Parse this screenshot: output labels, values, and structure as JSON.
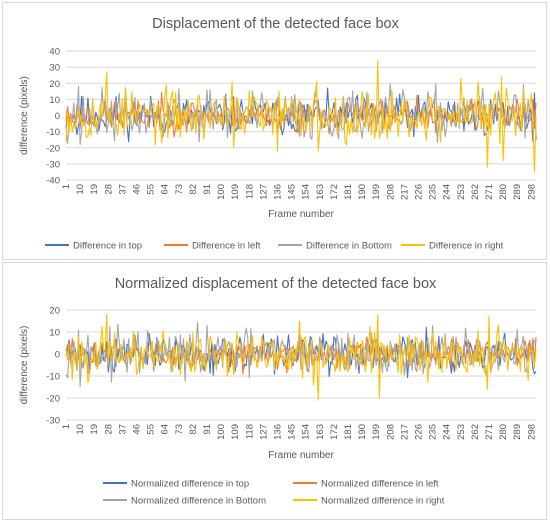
{
  "chart_data": [
    {
      "type": "line",
      "title": "Displacement of the detected face box",
      "xlabel": "Frame number",
      "ylabel": "difference (pixels)",
      "ylim": [
        -40,
        40
      ],
      "yticks": [
        40,
        30,
        20,
        10,
        0,
        -10,
        -20,
        -30,
        -40
      ],
      "xrange": [
        1,
        301
      ],
      "xticks": [
        1,
        10,
        19,
        28,
        37,
        46,
        55,
        64,
        73,
        82,
        91,
        100,
        109,
        118,
        127,
        136,
        145,
        154,
        163,
        172,
        181,
        190,
        199,
        208,
        217,
        226,
        235,
        244,
        253,
        262,
        271,
        280,
        289,
        298
      ],
      "grid": true,
      "legend_position": "bottom",
      "series": [
        {
          "name": "Difference in top",
          "color": "#4472c4",
          "amplitude": 7,
          "seed": 11,
          "spikes": [
            [
              8,
              -12
            ],
            [
              150,
              9
            ],
            [
              299,
              -16
            ],
            [
              300,
              14
            ]
          ]
        },
        {
          "name": "Difference in left",
          "color": "#ed7d31",
          "amplitude": 6,
          "seed": 23,
          "spikes": [
            [
              60,
              9
            ],
            [
              300,
              -8
            ]
          ]
        },
        {
          "name": "Difference in Bottom",
          "color": "#a5a5a5",
          "amplitude": 9,
          "seed": 37,
          "spikes": [
            [
              9,
              18
            ],
            [
              10,
              -18
            ],
            [
              91,
              16
            ],
            [
              160,
              15
            ],
            [
              255,
              11
            ],
            [
              293,
              19
            ]
          ]
        },
        {
          "name": "Difference in right",
          "color": "#ffc000",
          "amplitude": 9,
          "seed": 53,
          "spikes": [
            [
              27,
              27
            ],
            [
              28,
              -5
            ],
            [
              107,
              21
            ],
            [
              108,
              -20
            ],
            [
              136,
              -22
            ],
            [
              137,
              15
            ],
            [
              161,
              21
            ],
            [
              162,
              -22
            ],
            [
              200,
              34
            ],
            [
              201,
              -14
            ],
            [
              253,
              23
            ],
            [
              264,
              21
            ],
            [
              270,
              -32
            ],
            [
              271,
              7
            ],
            [
              279,
              24
            ],
            [
              280,
              -28
            ],
            [
              300,
              -35
            ]
          ]
        }
      ]
    },
    {
      "type": "line",
      "title": "Normalized displacement of the detected face box",
      "xlabel": "Frame number",
      "ylabel": "difference (pixels)",
      "ylim": [
        -30,
        20
      ],
      "yticks": [
        20,
        10,
        0,
        -10,
        -20,
        -30
      ],
      "xrange": [
        1,
        301
      ],
      "xticks": [
        1,
        10,
        19,
        28,
        37,
        46,
        55,
        64,
        73,
        82,
        91,
        100,
        109,
        118,
        127,
        136,
        145,
        154,
        163,
        172,
        181,
        190,
        199,
        208,
        217,
        226,
        235,
        244,
        253,
        262,
        271,
        280,
        289,
        298
      ],
      "grid": true,
      "legend_position": "bottom",
      "series": [
        {
          "name": "Normalized difference in top",
          "color": "#4472c4",
          "amplitude": 5,
          "seed": 71,
          "spikes": [
            [
              8,
              -6
            ],
            [
              150,
              6
            ],
            [
              300,
              -9
            ]
          ]
        },
        {
          "name": "Normalized difference in left",
          "color": "#ed7d31",
          "amplitude": 4,
          "seed": 83,
          "spikes": [
            [
              60,
              6
            ],
            [
              299,
              7
            ]
          ]
        },
        {
          "name": "Normalized difference in Bottom",
          "color": "#a5a5a5",
          "amplitude": 6,
          "seed": 97,
          "spikes": [
            [
              9,
              11
            ],
            [
              91,
              13
            ],
            [
              235,
              13
            ],
            [
              293,
              8
            ],
            [
              294,
              -8
            ]
          ]
        },
        {
          "name": "Normalized difference in right",
          "color": "#ffc000",
          "amplitude": 6,
          "seed": 101,
          "spikes": [
            [
              27,
              18
            ],
            [
              28,
              -5
            ],
            [
              150,
              15
            ],
            [
              159,
              -14
            ],
            [
              162,
              -21
            ],
            [
              163,
              5
            ],
            [
              200,
              18
            ],
            [
              201,
              -20
            ],
            [
              270,
              -16
            ],
            [
              271,
              17
            ],
            [
              272,
              -8
            ]
          ]
        }
      ]
    }
  ]
}
